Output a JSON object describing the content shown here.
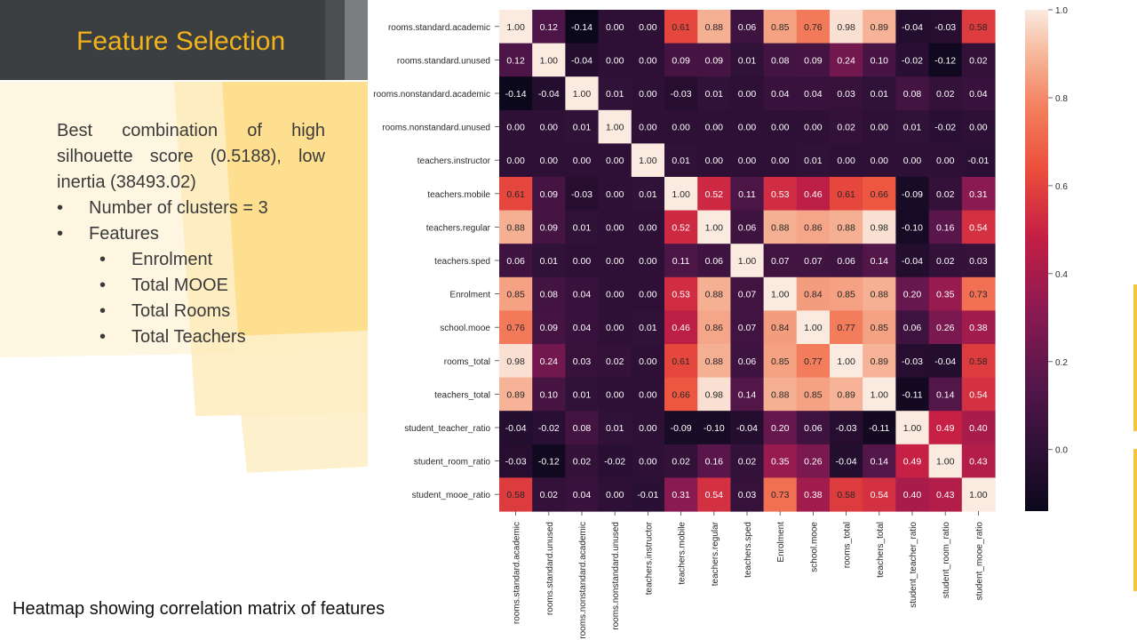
{
  "slide": {
    "title": "Feature Selection",
    "paragraph": "Best combination of high silhouette score (0.5188), low inertia (38493.02)",
    "bullets": [
      {
        "level": 1,
        "text": "Number of clusters = 3"
      },
      {
        "level": 1,
        "text": "Features"
      },
      {
        "level": 2,
        "text": "Enrolment"
      },
      {
        "level": 2,
        "text": "Total MOOE"
      },
      {
        "level": 2,
        "text": "Total Rooms"
      },
      {
        "level": 2,
        "text": "Total Teachers"
      }
    ],
    "bullet_glyph": "•",
    "caption": "Heatmap showing correlation matrix of features",
    "colors": {
      "title": "#f3b31a",
      "title_bar": "#3b3f42",
      "accent": "#fcd97a"
    }
  },
  "chart_data": {
    "type": "heatmap",
    "title": "",
    "xlabel": "",
    "ylabel": "",
    "labels": [
      "rooms.standard.academic",
      "rooms.standard.unused",
      "rooms.nonstandard.academic",
      "rooms.nonstandard.unused",
      "teachers.instructor",
      "teachers.mobile",
      "teachers.regular",
      "teachers.sped",
      "Enrolment",
      "school.mooe",
      "rooms_total",
      "teachers_total",
      "student_teacher_ratio",
      "student_room_ratio",
      "student_mooe_ratio"
    ],
    "matrix": [
      [
        1.0,
        0.12,
        -0.14,
        -0.0,
        -0.0,
        0.61,
        0.88,
        0.06,
        0.85,
        0.76,
        0.98,
        0.89,
        -0.04,
        -0.03,
        0.58
      ],
      [
        0.12,
        1.0,
        -0.04,
        0.0,
        -0.0,
        0.09,
        0.09,
        0.01,
        0.08,
        0.09,
        0.24,
        0.1,
        -0.02,
        -0.12,
        0.02
      ],
      [
        -0.14,
        -0.04,
        1.0,
        0.01,
        -0.0,
        -0.03,
        0.01,
        -0.0,
        0.04,
        0.04,
        0.03,
        0.01,
        0.08,
        0.02,
        0.04
      ],
      [
        -0.0,
        0.0,
        0.01,
        1.0,
        -0.0,
        0.0,
        -0.0,
        -0.0,
        0.0,
        0.0,
        0.02,
        -0.0,
        0.01,
        -0.02,
        -0.0
      ],
      [
        -0.0,
        -0.0,
        -0.0,
        -0.0,
        1.0,
        0.01,
        -0.0,
        -0.0,
        0.0,
        0.01,
        -0.0,
        0.0,
        -0.0,
        0.0,
        -0.01
      ],
      [
        0.61,
        0.09,
        -0.03,
        0.0,
        0.01,
        1.0,
        0.52,
        0.11,
        0.53,
        0.46,
        0.61,
        0.66,
        -0.09,
        0.02,
        0.31
      ],
      [
        0.88,
        0.09,
        0.01,
        -0.0,
        -0.0,
        0.52,
        1.0,
        0.06,
        0.88,
        0.86,
        0.88,
        0.98,
        -0.1,
        0.16,
        0.54
      ],
      [
        0.06,
        0.01,
        -0.0,
        -0.0,
        -0.0,
        0.11,
        0.06,
        1.0,
        0.07,
        0.07,
        0.06,
        0.14,
        -0.04,
        0.02,
        0.03
      ],
      [
        0.85,
        0.08,
        0.04,
        0.0,
        0.0,
        0.53,
        0.88,
        0.07,
        1.0,
        0.84,
        0.85,
        0.88,
        0.2,
        0.35,
        0.73
      ],
      [
        0.76,
        0.09,
        0.04,
        0.0,
        0.01,
        0.46,
        0.86,
        0.07,
        0.84,
        1.0,
        0.77,
        0.85,
        0.06,
        0.26,
        0.38
      ],
      [
        0.98,
        0.24,
        0.03,
        0.02,
        -0.0,
        0.61,
        0.88,
        0.06,
        0.85,
        0.77,
        1.0,
        0.89,
        -0.03,
        -0.04,
        0.58
      ],
      [
        0.89,
        0.1,
        0.01,
        -0.0,
        0.0,
        0.66,
        0.98,
        0.14,
        0.88,
        0.85,
        0.89,
        1.0,
        -0.11,
        0.14,
        0.54
      ],
      [
        -0.04,
        -0.02,
        0.08,
        0.01,
        -0.0,
        -0.09,
        -0.1,
        -0.04,
        0.2,
        0.06,
        -0.03,
        -0.11,
        1.0,
        0.49,
        0.4
      ],
      [
        -0.03,
        -0.12,
        0.02,
        -0.02,
        0.0,
        0.02,
        0.16,
        0.02,
        0.35,
        0.26,
        -0.04,
        0.14,
        0.49,
        1.0,
        0.43
      ],
      [
        0.58,
        0.02,
        0.04,
        -0.0,
        -0.01,
        0.31,
        0.54,
        0.03,
        0.73,
        0.38,
        0.58,
        0.54,
        0.4,
        0.43,
        1.0
      ]
    ],
    "annotate": true,
    "value_format": "2 decimals",
    "colorbar": {
      "min": -0.14,
      "max": 1.0,
      "ticks": [
        0.0,
        0.2,
        0.4,
        0.6,
        0.8,
        1.0
      ],
      "tick_labels": [
        "0.0",
        "0.2",
        "0.4",
        "0.6",
        "0.8",
        "1.0"
      ],
      "colormap": "rocket",
      "placement": "right"
    },
    "grid": false,
    "legend": "none"
  }
}
